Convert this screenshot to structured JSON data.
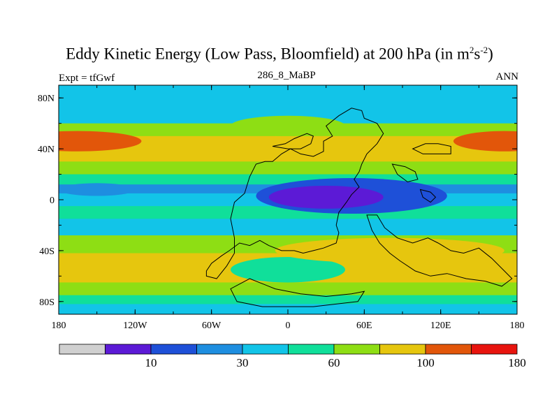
{
  "chart_data": {
    "type": "heatmap",
    "title": "Eddy Kinetic Energy (Low Pass, Bloomfield) at 200 hPa (in m",
    "title_sup_1": "2",
    "title_mid": "s",
    "title_sup_2": "-2",
    "title_end": ")",
    "left_label": "Expt = tfGwf",
    "center_label": "286_8_MaBP",
    "right_label": "ANN",
    "x_ticks": [
      "180",
      "120W",
      "60W",
      "0",
      "60E",
      "120E",
      "180"
    ],
    "y_ticks": [
      "80N",
      "40N",
      "0",
      "40S",
      "80S"
    ],
    "xlim": [
      -180,
      180
    ],
    "ylim": [
      -90,
      90
    ],
    "colorbar": {
      "colors": [
        "#d0d0d0",
        "#5c1ad6",
        "#1e50d8",
        "#1e8ee0",
        "#12c4e8",
        "#10df9a",
        "#8ede14",
        "#e6c60e",
        "#e2560a",
        "#e8140e"
      ],
      "labels": [
        "10",
        "30",
        "60",
        "100",
        "180"
      ],
      "label_after_bin": [
        1,
        3,
        5,
        7,
        9
      ]
    },
    "lat_bands": [
      {
        "lat": 90,
        "level": 4
      },
      {
        "lat": 72,
        "level": 4
      },
      {
        "lat": 60,
        "level": 6
      },
      {
        "lat": 50,
        "level": 7
      },
      {
        "lat": 42,
        "level": 7
      },
      {
        "lat": 30,
        "level": 6
      },
      {
        "lat": 20,
        "level": 5
      },
      {
        "lat": 12,
        "level": 3
      },
      {
        "lat": 5,
        "level": 4
      },
      {
        "lat": -5,
        "level": 5
      },
      {
        "lat": -15,
        "level": 4
      },
      {
        "lat": -28,
        "level": 6
      },
      {
        "lat": -42,
        "level": 7
      },
      {
        "lat": -55,
        "level": 7
      },
      {
        "lat": -65,
        "level": 6
      },
      {
        "lat": -75,
        "level": 5
      },
      {
        "lat": -82,
        "level": 4
      },
      {
        "lat": -90,
        "level": 3
      }
    ]
  }
}
